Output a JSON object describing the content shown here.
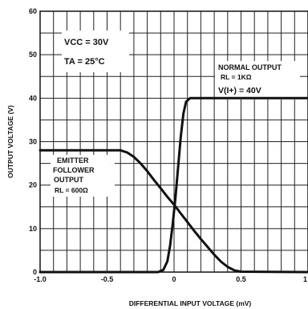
{
  "chart_data": {
    "type": "line",
    "xlabel": "DIFFERENTIAL INPUT VOLTAGE (mV)",
    "ylabel": "OUTPUT VOLTAGE (V)",
    "xlim": [
      -1.0,
      1.0
    ],
    "ylim": [
      0,
      60
    ],
    "x_ticks": [
      "-1.0",
      "-0.5",
      "0",
      "0.5",
      "1"
    ],
    "y_ticks": [
      "0",
      "10",
      "20",
      "30",
      "40",
      "50",
      "60"
    ],
    "grid": true,
    "conditions": {
      "vcc": "VCC = 30V",
      "ta": "TA = 25°C"
    },
    "series": [
      {
        "name": "EMITTER FOLLOWER OUTPUT",
        "label_lines": [
          "EMITTER",
          "FOLLOWER",
          "OUTPUT"
        ],
        "load": "RL = 600Ω",
        "x": [
          -1.0,
          -0.4,
          -0.35,
          -0.3,
          -0.25,
          -0.2,
          -0.15,
          -0.1,
          -0.05,
          0.0,
          0.05,
          0.1,
          0.15,
          0.2,
          0.25,
          0.3,
          0.35,
          0.4,
          0.45,
          0.5,
          1.0
        ],
        "y": [
          28,
          28,
          27.5,
          26.5,
          25,
          23.2,
          21.2,
          19.3,
          17.3,
          15.5,
          13.5,
          11.5,
          9.5,
          7.6,
          5.8,
          4,
          2.4,
          1.2,
          0.4,
          0.1,
          0
        ]
      },
      {
        "name": "NORMAL OUTPUT",
        "label_lines": [
          "NORMAL OUTPUT"
        ],
        "load": "RL = 1KΩ",
        "supply": "V(I+) = 40V",
        "x": [
          -1.0,
          -0.12,
          -0.08,
          -0.05,
          -0.03,
          -0.01,
          0.01,
          0.03,
          0.05,
          0.07,
          0.09,
          0.12,
          0.2,
          0.3,
          1.0
        ],
        "y": [
          0,
          0,
          0.5,
          2.5,
          6,
          11,
          17,
          24,
          31,
          36.5,
          39.2,
          40,
          40,
          40,
          40
        ]
      }
    ]
  }
}
